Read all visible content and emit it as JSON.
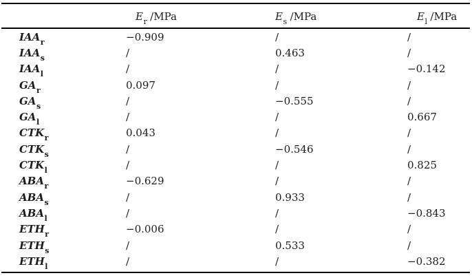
{
  "page": {
    "background_color": "#ffffff",
    "text_color": "#1b1b1b",
    "rule_color": "#000000"
  },
  "table": {
    "header": [
      {
        "symbol": "E",
        "subscript": "r",
        "unit": "/MPa"
      },
      {
        "symbol": "E",
        "subscript": "s",
        "unit": "/MPa"
      },
      {
        "symbol": "E",
        "subscript": "l",
        "unit": "/MPa"
      }
    ],
    "rows": [
      {
        "label": "IAA",
        "subscript": "r",
        "er": "−0.909",
        "es": "/",
        "el": "/"
      },
      {
        "label": "IAA",
        "subscript": "s",
        "er": "/",
        "es": "0.463",
        "el": "/"
      },
      {
        "label": "IAA",
        "subscript": "l",
        "er": "/",
        "es": "/",
        "el": "−0.142"
      },
      {
        "label": "GA",
        "subscript": "r",
        "er": "0.097",
        "es": "/",
        "el": "/"
      },
      {
        "label": "GA",
        "subscript": "s",
        "er": "/",
        "es": "−0.555",
        "el": "/"
      },
      {
        "label": "GA",
        "subscript": "l",
        "er": "/",
        "es": "/",
        "el": "0.667"
      },
      {
        "label": "CTK",
        "subscript": "r",
        "er": "0.043",
        "es": "/",
        "el": "/"
      },
      {
        "label": "CTK",
        "subscript": "s",
        "er": "/",
        "es": "−0.546",
        "el": "/"
      },
      {
        "label": "CTK",
        "subscript": "l",
        "er": "/",
        "es": "/",
        "el": "0.825"
      },
      {
        "label": "ABA",
        "subscript": "r",
        "er": "−0.629",
        "es": "/",
        "el": "/"
      },
      {
        "label": "ABA",
        "subscript": "s",
        "er": "/",
        "es": "0.933",
        "el": "/"
      },
      {
        "label": "ABA",
        "subscript": "l",
        "er": "/",
        "es": "/",
        "el": "−0.843"
      },
      {
        "label": "ETH",
        "subscript": "r",
        "er": "−0.006",
        "es": "/",
        "el": "/"
      },
      {
        "label": "ETH",
        "subscript": "s",
        "er": "/",
        "es": "0.533",
        "el": "/"
      },
      {
        "label": "ETH",
        "subscript": "l",
        "er": "/",
        "es": "/",
        "el": "−0.382"
      }
    ]
  }
}
